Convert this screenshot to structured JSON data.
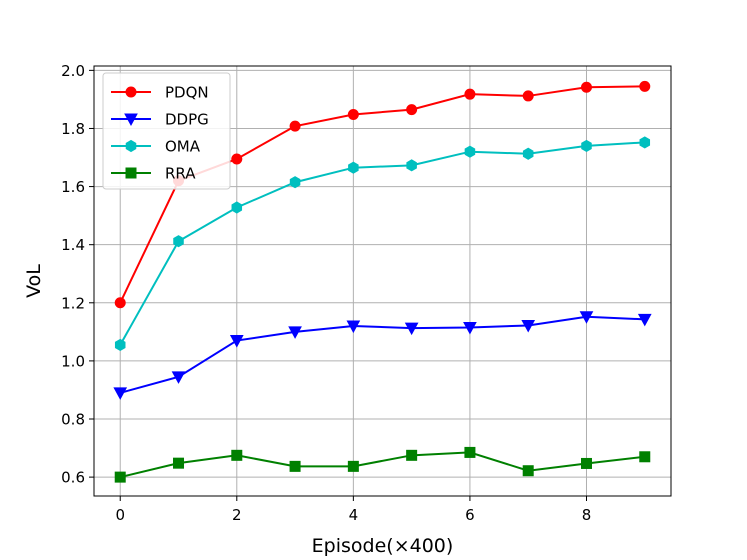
{
  "chart_data": {
    "type": "line",
    "title": "",
    "xlabel": "Episode(×400)",
    "ylabel": "VoL",
    "x": [
      0,
      1,
      2,
      3,
      4,
      5,
      6,
      7,
      8,
      9
    ],
    "xlim": [
      -0.45,
      9.45
    ],
    "ylim": [
      0.535,
      2.015
    ],
    "xticks": [
      0,
      2,
      4,
      6,
      8
    ],
    "yticks": [
      0.6,
      0.8,
      1.0,
      1.2,
      1.4,
      1.6,
      1.8,
      2.0
    ],
    "grid": true,
    "legend_position": "top-left",
    "series": [
      {
        "name": "PDQN",
        "color": "#ff0000",
        "marker": "circle",
        "values": [
          1.2,
          1.62,
          1.695,
          1.808,
          1.848,
          1.865,
          1.918,
          1.912,
          1.942,
          1.945
        ]
      },
      {
        "name": "DDPG",
        "color": "#0000ff",
        "marker": "triangle-down",
        "values": [
          0.89,
          0.945,
          1.07,
          1.1,
          1.12,
          1.113,
          1.115,
          1.122,
          1.152,
          1.143
        ]
      },
      {
        "name": "OMA",
        "color": "#00bfbf",
        "marker": "hexagon",
        "values": [
          1.055,
          1.412,
          1.528,
          1.615,
          1.665,
          1.673,
          1.72,
          1.713,
          1.74,
          1.752
        ]
      },
      {
        "name": "RRA",
        "color": "#008000",
        "marker": "square",
        "values": [
          0.6,
          0.648,
          0.675,
          0.637,
          0.637,
          0.675,
          0.685,
          0.622,
          0.647,
          0.67
        ]
      }
    ]
  }
}
